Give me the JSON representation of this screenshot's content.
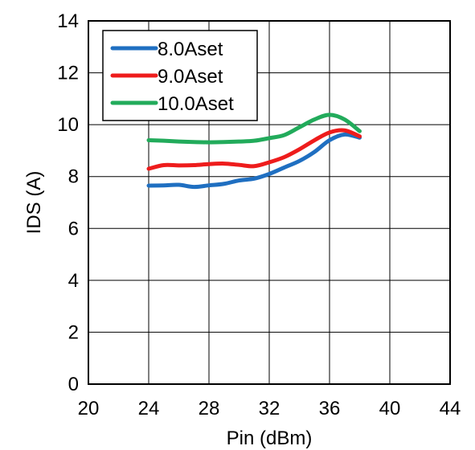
{
  "chart_data": {
    "type": "line",
    "title": "",
    "xlabel": "Pin (dBm)",
    "ylabel": "IDS (A)",
    "xlim": [
      20,
      44
    ],
    "ylim": [
      0,
      14
    ],
    "xticks": [
      20,
      24,
      28,
      32,
      36,
      40,
      44
    ],
    "yticks": [
      0,
      2,
      4,
      6,
      8,
      10,
      12,
      14
    ],
    "grid": true,
    "legend_position": "top-left",
    "series": [
      {
        "name": "8.0Aset",
        "color": "#1f6fc1",
        "x": [
          24,
          25,
          26,
          27,
          28,
          29,
          30,
          31,
          32,
          33,
          34,
          35,
          36,
          37,
          38
        ],
        "y": [
          7.65,
          7.66,
          7.68,
          7.6,
          7.66,
          7.72,
          7.85,
          7.92,
          8.1,
          8.35,
          8.6,
          8.95,
          9.4,
          9.62,
          9.5
        ]
      },
      {
        "name": "9.0Aset",
        "color": "#ee1c1c",
        "x": [
          24,
          25,
          26,
          27,
          28,
          29,
          30,
          31,
          32,
          33,
          34,
          35,
          36,
          37,
          38
        ],
        "y": [
          8.3,
          8.44,
          8.43,
          8.44,
          8.48,
          8.5,
          8.45,
          8.4,
          8.55,
          8.75,
          9.05,
          9.4,
          9.7,
          9.78,
          9.55
        ]
      },
      {
        "name": "10.0Aset",
        "color": "#22ab5b",
        "x": [
          24,
          25,
          26,
          27,
          28,
          29,
          30,
          31,
          32,
          33,
          34,
          35,
          36,
          37,
          38
        ],
        "y": [
          9.4,
          9.38,
          9.35,
          9.33,
          9.32,
          9.33,
          9.35,
          9.38,
          9.48,
          9.6,
          9.9,
          10.2,
          10.38,
          10.2,
          9.75
        ]
      }
    ]
  }
}
